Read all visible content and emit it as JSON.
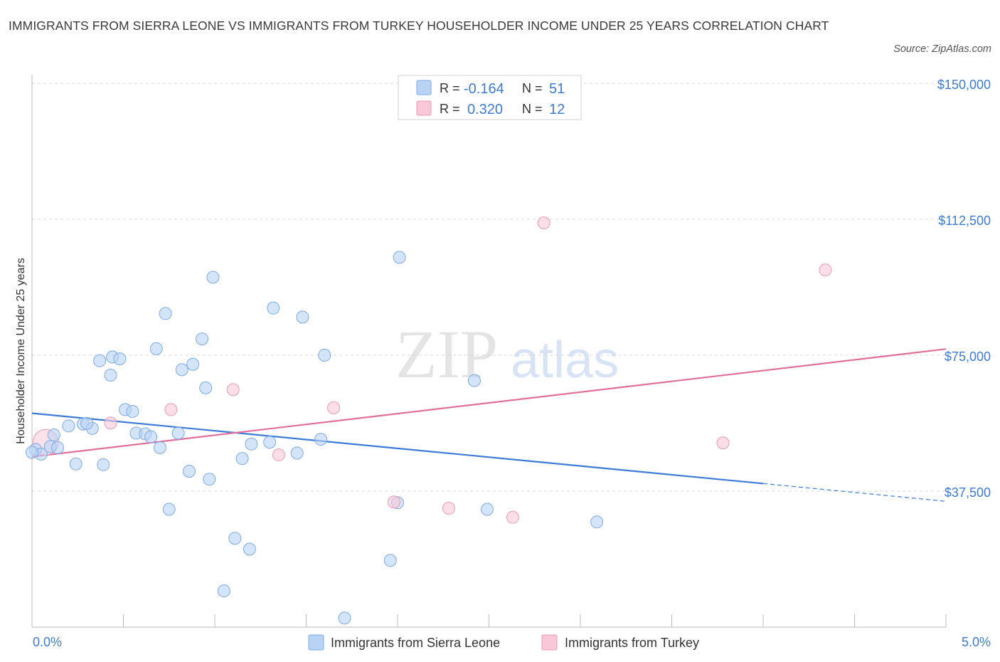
{
  "title": "IMMIGRANTS FROM SIERRA LEONE VS IMMIGRANTS FROM TURKEY HOUSEHOLDER INCOME UNDER 25 YEARS CORRELATION CHART",
  "source": "Source: ZipAtlas.com",
  "watermark": {
    "zip": "ZIP",
    "atlas": "atlas"
  },
  "colors": {
    "sierra_leone": "#3d7bd6",
    "sierra_leone_fill": "#b9d3f5",
    "turkey": "#e0709a",
    "turkey_fill": "#f8c8d8",
    "tick_text": "#3d7bd6",
    "grid": "#d9d9d9"
  },
  "legend": {
    "rows": [
      {
        "r_label": "R =",
        "r_value": "-0.164",
        "n_label": "N =",
        "n_value": "51"
      },
      {
        "r_label": "R =",
        "r_value": "0.320",
        "n_label": "N =",
        "n_value": "12"
      }
    ]
  },
  "chart_data": {
    "type": "scatter",
    "ylabel": "Householder Income Under 25 years",
    "xlim": [
      0,
      5
    ],
    "ylim": [
      0,
      150000
    ],
    "x_ticks": [
      "0.0%",
      "5.0%"
    ],
    "y_ticks": [
      {
        "value": 37500,
        "label": "$37,500"
      },
      {
        "value": 75000,
        "label": "$75,000"
      },
      {
        "value": 112500,
        "label": "$112,500"
      },
      {
        "value": 150000,
        "label": "$150,000"
      }
    ],
    "grid": true,
    "legend_position": "top-center",
    "series": [
      {
        "name": "Immigrants from Sierra Leone",
        "points": [
          [
            0.02,
            49000
          ],
          [
            0.05,
            47700
          ],
          [
            0.1,
            49800
          ],
          [
            0.12,
            53000
          ],
          [
            0.14,
            49500
          ],
          [
            0.24,
            45000
          ],
          [
            0.28,
            56000
          ],
          [
            0.2,
            55500
          ],
          [
            0.33,
            54800
          ],
          [
            0.3,
            56200
          ],
          [
            0.37,
            73500
          ],
          [
            0.39,
            44800
          ],
          [
            0.43,
            69500
          ],
          [
            0.44,
            74500
          ],
          [
            0.48,
            74000
          ],
          [
            0.51,
            60000
          ],
          [
            0.55,
            59500
          ],
          [
            0.57,
            53500
          ],
          [
            0.62,
            53300
          ],
          [
            0.65,
            52500
          ],
          [
            0.7,
            49500
          ],
          [
            0.73,
            86500
          ],
          [
            0.75,
            32500
          ],
          [
            0.68,
            76800
          ],
          [
            0.8,
            53500
          ],
          [
            0.82,
            71000
          ],
          [
            0.86,
            43000
          ],
          [
            0.88,
            72500
          ],
          [
            0.93,
            79500
          ],
          [
            0.95,
            66000
          ],
          [
            0.97,
            40800
          ],
          [
            0.99,
            96500
          ],
          [
            1.05,
            10000
          ],
          [
            1.11,
            24500
          ],
          [
            1.15,
            46500
          ],
          [
            1.19,
            21500
          ],
          [
            1.2,
            50500
          ],
          [
            1.32,
            88000
          ],
          [
            1.3,
            51000
          ],
          [
            1.45,
            48000
          ],
          [
            1.48,
            85500
          ],
          [
            1.58,
            51800
          ],
          [
            1.6,
            75000
          ],
          [
            1.71,
            2500
          ],
          [
            1.96,
            18400
          ],
          [
            2.01,
            102000
          ],
          [
            2.0,
            34300
          ],
          [
            2.42,
            68000
          ],
          [
            2.49,
            32500
          ],
          [
            3.09,
            29000
          ],
          [
            0.0,
            48200
          ]
        ],
        "trend": {
          "x": [
            0,
            4.0
          ],
          "y": [
            59000,
            39600
          ],
          "dashed_x": [
            4.0,
            5.0
          ],
          "dashed_y": [
            39600,
            34700
          ]
        }
      },
      {
        "name": "Immigrants from Turkey",
        "points": [
          [
            0.08,
            51000
          ],
          [
            0.43,
            56300
          ],
          [
            0.76,
            60000
          ],
          [
            1.1,
            65500
          ],
          [
            1.35,
            47500
          ],
          [
            1.65,
            60500
          ],
          [
            1.98,
            34500
          ],
          [
            2.28,
            32800
          ],
          [
            2.63,
            30300
          ],
          [
            2.8,
            111500
          ],
          [
            3.78,
            50800
          ],
          [
            4.34,
            98500
          ]
        ],
        "trend": {
          "x": [
            0,
            5.0
          ],
          "y": [
            47000,
            76700
          ]
        }
      }
    ]
  }
}
